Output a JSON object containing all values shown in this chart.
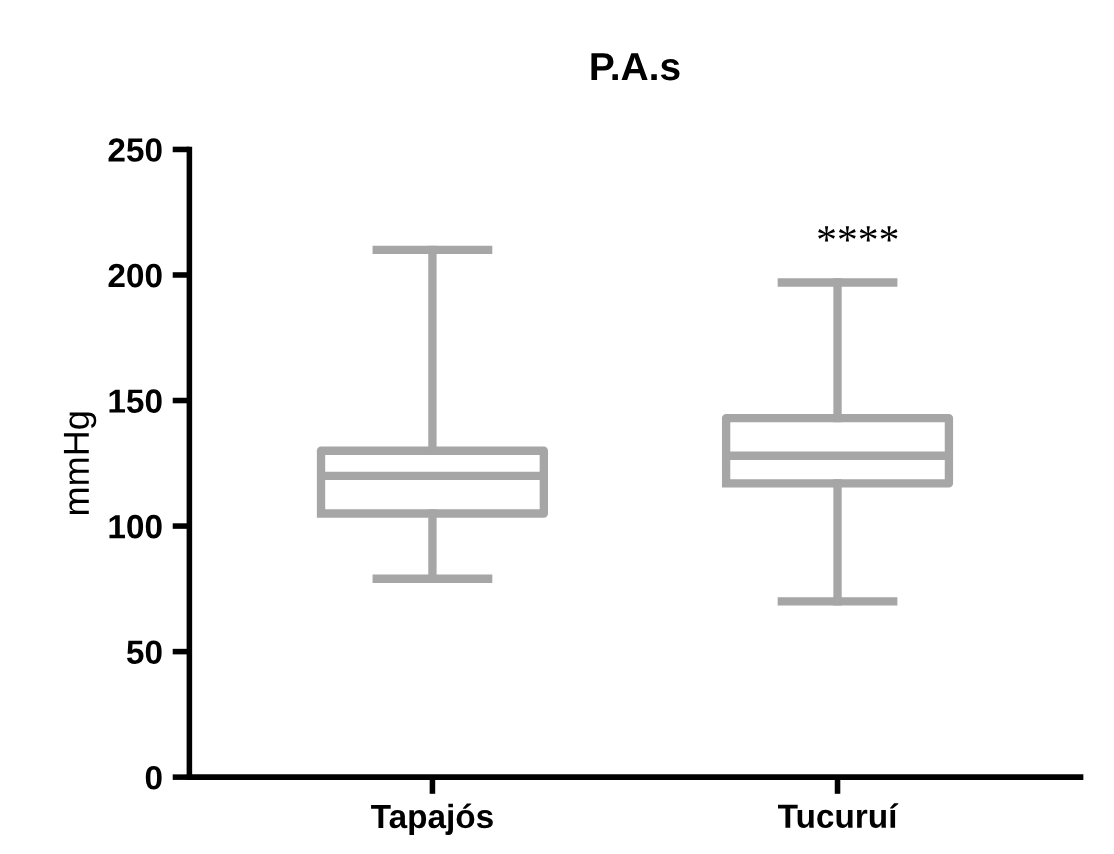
{
  "chart_data": {
    "type": "box",
    "title": "P.A.s",
    "ylabel": "mmHg",
    "categories": [
      "Tapajós",
      "Tucuruí"
    ],
    "color": "#a6a6a6",
    "boxes": [
      {
        "low": 79,
        "q1": 105,
        "median": 120,
        "q3": 130,
        "high": 210
      },
      {
        "low": 70,
        "q1": 117,
        "median": 128,
        "q3": 143,
        "high": 197
      }
    ],
    "ylim": [
      0,
      250
    ],
    "yticks": [
      0,
      50,
      100,
      150,
      200,
      250
    ],
    "grid": false,
    "annotations": [
      "****"
    ]
  }
}
